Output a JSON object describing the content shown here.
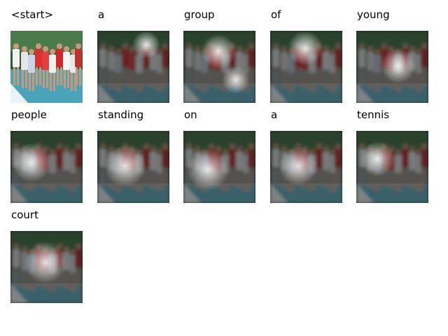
{
  "frames": [
    {
      "word": "<start>",
      "mode": "original"
    },
    {
      "word": "a",
      "mode": "attention"
    },
    {
      "word": "group",
      "mode": "attention"
    },
    {
      "word": "of",
      "mode": "attention"
    },
    {
      "word": "young",
      "mode": "attention"
    },
    {
      "word": "people",
      "mode": "attention"
    },
    {
      "word": "standing",
      "mode": "attention"
    },
    {
      "word": "on",
      "mode": "attention"
    },
    {
      "word": "a",
      "mode": "attention"
    },
    {
      "word": "tennis",
      "mode": "attention"
    },
    {
      "word": "court",
      "mode": "attention"
    }
  ]
}
